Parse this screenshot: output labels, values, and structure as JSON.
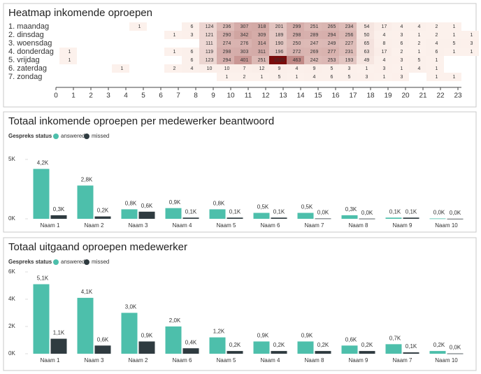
{
  "chart_data": [
    {
      "type": "heatmap",
      "title": "Heatmap inkomende oproepen",
      "x": [
        0,
        1,
        2,
        3,
        4,
        5,
        6,
        7,
        8,
        9,
        10,
        11,
        12,
        13,
        14,
        15,
        16,
        17,
        18,
        19,
        20,
        21,
        22,
        23
      ],
      "color_scale": [
        "#fcf1ec",
        "#7a0d0d"
      ],
      "series": [
        {
          "name": "1. maandag",
          "values": [
            null,
            null,
            null,
            null,
            1,
            null,
            null,
            6,
            124,
            236,
            307,
            318,
            201,
            299,
            251,
            265,
            234,
            54,
            17,
            4,
            4,
            2,
            1,
            null
          ]
        },
        {
          "name": "2. dinsdag",
          "values": [
            null,
            null,
            null,
            null,
            null,
            null,
            1,
            3,
            121,
            290,
            342,
            309,
            189,
            298,
            289,
            294,
            256,
            50,
            4,
            3,
            1,
            2,
            1,
            1
          ]
        },
        {
          "name": "3. woensdag",
          "values": [
            null,
            null,
            null,
            null,
            null,
            null,
            null,
            null,
            111,
            274,
            276,
            314,
            190,
            250,
            247,
            249,
            227,
            65,
            8,
            6,
            2,
            4,
            5,
            3
          ]
        },
        {
          "name": "4. donderdag",
          "values": [
            1,
            null,
            null,
            null,
            null,
            null,
            1,
            6,
            119,
            298,
            303,
            311,
            196,
            272,
            269,
            277,
            231,
            63,
            17,
            2,
            1,
            6,
            1,
            1
          ]
        },
        {
          "name": "5. vrijdag",
          "values": [
            1,
            null,
            null,
            null,
            null,
            null,
            null,
            6,
            123,
            294,
            401,
            251,
            1020,
            463,
            242,
            253,
            193,
            49,
            4,
            3,
            5,
            1,
            null,
            null
          ]
        },
        {
          "name": "6. zaterdag",
          "values": [
            null,
            null,
            null,
            1,
            null,
            null,
            2,
            4,
            10,
            10,
            7,
            12,
            9,
            4,
            9,
            5,
            3,
            1,
            3,
            1,
            4,
            1,
            null,
            null
          ]
        },
        {
          "name": "7. zondag",
          "values": [
            null,
            null,
            null,
            null,
            null,
            null,
            null,
            null,
            null,
            1,
            2,
            1,
            5,
            1,
            4,
            6,
            5,
            3,
            1,
            3,
            null,
            1,
            1,
            null
          ]
        }
      ]
    },
    {
      "type": "bar",
      "title": "Totaal inkomende oproepen per medewerker beantwoord",
      "legend_title": "Gespreks status",
      "categories": [
        "Naam 1",
        "Naam 2",
        "Naam 3",
        "Naam 4",
        "Naam 5",
        "Naam 6",
        "Naam 7",
        "Naam 8",
        "Naam 9",
        "Naam 10"
      ],
      "ylim": [
        0,
        5000
      ],
      "yticks": [
        {
          "value": 0,
          "label": "0K"
        },
        {
          "value": 5000,
          "label": "5K"
        }
      ],
      "series": [
        {
          "name": "answered",
          "color": "#4dbfab",
          "values": [
            4200,
            2800,
            800,
            900,
            800,
            500,
            500,
            300,
            100,
            30
          ],
          "value_labels": [
            "4,2K",
            "2,8K",
            "0,8K",
            "0,9K",
            "0,8K",
            "0,5K",
            "0,5K",
            "0,3K",
            "0,1K",
            "0,0K"
          ]
        },
        {
          "name": "missed",
          "color": "#2f3b40",
          "values": [
            300,
            200,
            600,
            100,
            100,
            100,
            30,
            20,
            100,
            10
          ],
          "value_labels": [
            "0,3K",
            "0,2K",
            "0,6K",
            "0,1K",
            "0,1K",
            "0,1K",
            "0,0K",
            "0,0K",
            "0,1K",
            "0,0K"
          ]
        }
      ]
    },
    {
      "type": "bar",
      "title": "Totaal uitgaand oproepen medewerker",
      "legend_title": "Gespreks status",
      "categories": [
        "Naam 1",
        "Naam 3",
        "Naam 2",
        "Naam 6",
        "Naam 5",
        "Naam 4",
        "Naam 8",
        "Naam 9",
        "Naam 7",
        "Naam 10"
      ],
      "ylim": [
        0,
        6000
      ],
      "yticks": [
        {
          "value": 0,
          "label": "0K"
        },
        {
          "value": 2000,
          "label": "2K"
        },
        {
          "value": 4000,
          "label": "4K"
        },
        {
          "value": 6000,
          "label": "6K"
        }
      ],
      "series": [
        {
          "name": "answered",
          "color": "#4dbfab",
          "values": [
            5100,
            4100,
            3000,
            2000,
            1200,
            900,
            900,
            600,
            700,
            200
          ],
          "value_labels": [
            "5,1K",
            "4,1K",
            "3,0K",
            "2,0K",
            "1,2K",
            "0,9K",
            "0,9K",
            "0,6K",
            "0,7K",
            "0,2K"
          ]
        },
        {
          "name": "missed",
          "color": "#2f3b40",
          "values": [
            1100,
            600,
            900,
            400,
            200,
            200,
            200,
            200,
            100,
            20
          ],
          "value_labels": [
            "1,1K",
            "0,6K",
            "0,9K",
            "0,4K",
            "0,2K",
            "0,2K",
            "0,2K",
            "0,2K",
            "0,1K",
            "0,0K"
          ]
        }
      ]
    }
  ]
}
